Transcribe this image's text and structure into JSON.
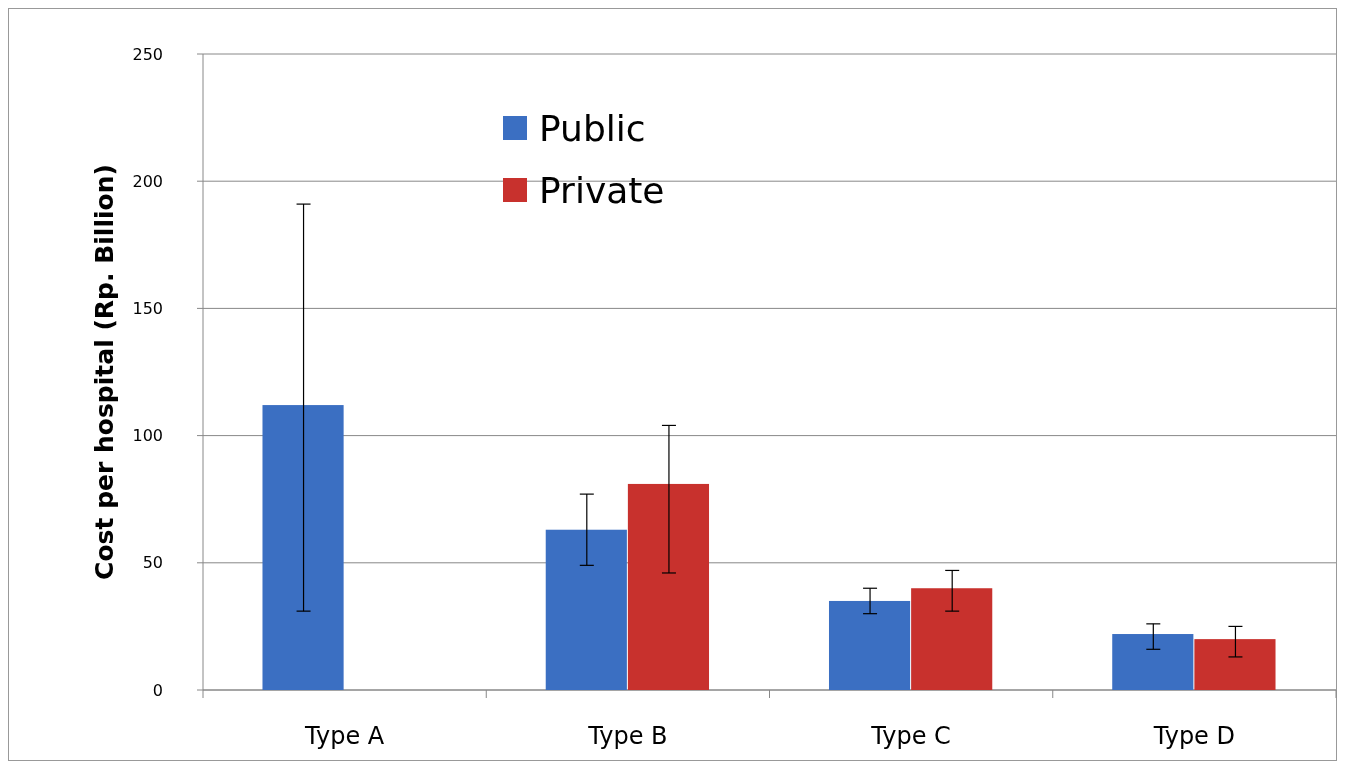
{
  "chart_data": {
    "type": "bar",
    "ylabel": "Cost per hospital (Rp. Billion)",
    "categories": [
      "Type A",
      "Type B",
      "Type C",
      "Type D"
    ],
    "series": [
      {
        "name": "Public",
        "color": "#3b6fc2",
        "values": [
          112,
          63,
          35,
          22
        ],
        "errors": [
          [
            31,
            191
          ],
          [
            49,
            77
          ],
          [
            30,
            40
          ],
          [
            16,
            26
          ]
        ]
      },
      {
        "name": "Private",
        "color": "#c8312d",
        "values": [
          null,
          81,
          40,
          20
        ],
        "errors": [
          null,
          [
            46,
            104
          ],
          [
            31,
            47
          ],
          [
            13,
            25
          ]
        ]
      }
    ],
    "ylim": [
      0,
      250
    ],
    "yticks": [
      0,
      50,
      100,
      150,
      200,
      250
    ],
    "grid": "y",
    "legend": "top left"
  }
}
